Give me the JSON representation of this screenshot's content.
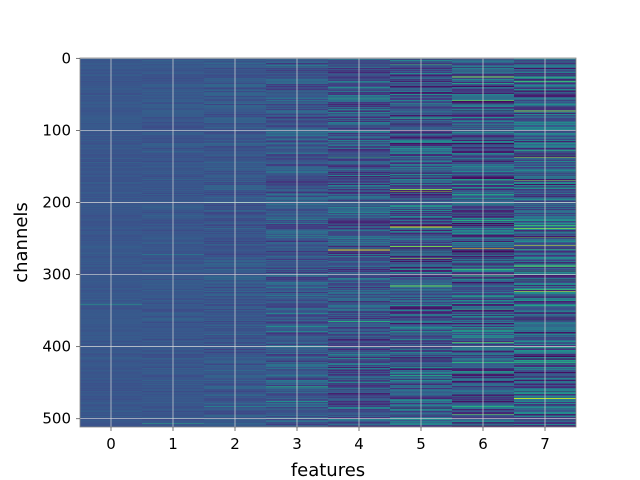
{
  "chart_data": {
    "type": "heatmap",
    "title": "",
    "xlabel": "features",
    "ylabel": "channels",
    "x_categories": [
      "0",
      "1",
      "2",
      "3",
      "4",
      "5",
      "6",
      "7"
    ],
    "y_ticks": [
      0,
      100,
      200,
      300,
      400,
      500
    ],
    "y_range": [
      0,
      511
    ],
    "y_inverted": true,
    "n_rows": 512,
    "grid": true,
    "colormap": "viridis",
    "background_color": "#3b528b",
    "per_feature_variation": [
      0.04,
      0.06,
      0.1,
      0.18,
      0.26,
      0.32,
      0.36,
      0.36
    ],
    "highlights": [
      {
        "feature": 0,
        "channel": 342,
        "value": 0.55
      },
      {
        "feature": 1,
        "channel": 507,
        "value": 0.6
      },
      {
        "feature": 2,
        "channel": 200,
        "value": 0.55
      },
      {
        "feature": 3,
        "channel": 246,
        "value": 0.55
      },
      {
        "feature": 4,
        "channel": 266,
        "value": 0.95
      },
      {
        "feature": 5,
        "channel": 234,
        "value": 0.95
      },
      {
        "feature": 5,
        "channel": 185,
        "value": 0.85
      },
      {
        "feature": 5,
        "channel": 278,
        "value": 0.85
      },
      {
        "feature": 6,
        "channel": 264,
        "value": 1.0
      },
      {
        "feature": 6,
        "channel": 26,
        "value": 0.8
      },
      {
        "feature": 6,
        "channel": 394,
        "value": 0.8
      },
      {
        "feature": 7,
        "channel": 324,
        "value": 0.95
      },
      {
        "feature": 7,
        "channel": 260,
        "value": 0.95
      },
      {
        "feature": 7,
        "channel": 138,
        "value": 0.85
      }
    ]
  }
}
